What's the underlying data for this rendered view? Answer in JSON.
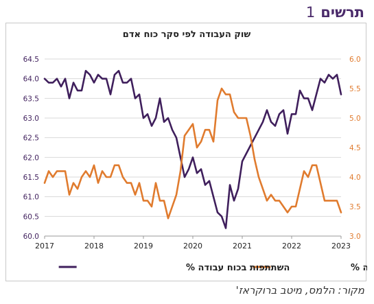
{
  "heading": {
    "word": "תרשים",
    "number": "1"
  },
  "source": "מקור: הלמס, מיטב ברוקראז'",
  "chart_data": {
    "type": "line",
    "title": "שוק העבודה לפי סקר כוח אדם",
    "x_ticks": [
      "2017",
      "2018",
      "2019",
      "2020",
      "2021",
      "2022",
      "2023"
    ],
    "xlim": [
      2017,
      2023
    ],
    "y_left": {
      "lim": [
        60.0,
        64.5
      ],
      "ticks": [
        "60.0",
        "60.5",
        "61.0",
        "61.5",
        "62.0",
        "62.5",
        "63.0",
        "63.5",
        "64.0",
        "64.5"
      ]
    },
    "y_right": {
      "lim": [
        3.0,
        6.0
      ],
      "ticks": [
        "3.0",
        "3.5",
        "4.0",
        "4.5",
        "5.0",
        "5.5",
        "6.0"
      ]
    },
    "grid": "horizontal",
    "legend_position": "bottom",
    "series": [
      {
        "name": "השתתפות בכוח עבודה %",
        "axis": "left",
        "color": "#3f1f5c",
        "x": [
          2017.0,
          2017.083,
          2017.167,
          2017.25,
          2017.333,
          2017.417,
          2017.5,
          2017.583,
          2017.667,
          2017.75,
          2017.833,
          2017.917,
          2018.0,
          2018.083,
          2018.167,
          2018.25,
          2018.333,
          2018.417,
          2018.5,
          2018.583,
          2018.667,
          2018.75,
          2018.833,
          2018.917,
          2019.0,
          2019.083,
          2019.167,
          2019.25,
          2019.333,
          2019.417,
          2019.5,
          2019.583,
          2019.667,
          2019.75,
          2019.833,
          2019.917,
          2020.0,
          2020.083,
          2020.167,
          2020.25,
          2020.333,
          2020.417,
          2020.5,
          2020.583,
          2020.667,
          2020.75,
          2020.833,
          2020.917,
          2021.0,
          2021.083,
          2021.167,
          2021.25,
          2021.333,
          2021.417,
          2021.5,
          2021.583,
          2021.667,
          2021.75,
          2021.833,
          2021.917,
          2022.0,
          2022.083,
          2022.167,
          2022.25,
          2022.333,
          2022.417,
          2022.5,
          2022.583,
          2022.667,
          2022.75,
          2022.833,
          2022.917,
          2023.0
        ],
        "values": [
          64.0,
          63.9,
          63.9,
          64.0,
          63.8,
          64.0,
          63.5,
          63.9,
          63.7,
          63.7,
          64.2,
          64.1,
          63.9,
          64.1,
          64.0,
          64.0,
          63.6,
          64.1,
          64.2,
          63.9,
          63.9,
          64.0,
          63.5,
          63.6,
          63.0,
          63.1,
          62.8,
          63.0,
          63.5,
          62.9,
          63.0,
          62.7,
          62.5,
          62.0,
          61.5,
          61.7,
          62.0,
          61.6,
          61.7,
          61.3,
          61.4,
          61.0,
          60.6,
          60.5,
          60.2,
          61.3,
          60.9,
          61.2,
          61.9,
          62.1,
          62.3,
          62.5,
          62.7,
          62.9,
          63.2,
          62.9,
          62.8,
          63.1,
          63.2,
          62.6,
          63.1,
          63.1,
          63.7,
          63.5,
          63.5,
          63.2,
          63.6,
          64.0,
          63.9,
          64.1,
          64.0,
          64.1,
          63.6
        ]
      },
      {
        "name": "שיעור האבטלה %",
        "axis": "right",
        "color": "#e07b2e",
        "x": [
          2017.0,
          2017.083,
          2017.167,
          2017.25,
          2017.333,
          2017.417,
          2017.5,
          2017.583,
          2017.667,
          2017.75,
          2017.833,
          2017.917,
          2018.0,
          2018.083,
          2018.167,
          2018.25,
          2018.333,
          2018.417,
          2018.5,
          2018.583,
          2018.667,
          2018.75,
          2018.833,
          2018.917,
          2019.0,
          2019.083,
          2019.167,
          2019.25,
          2019.333,
          2019.417,
          2019.5,
          2019.583,
          2019.667,
          2019.75,
          2019.833,
          2019.917,
          2020.0,
          2020.083,
          2020.167,
          2020.25,
          2020.333,
          2020.417,
          2020.5,
          2020.583,
          2020.667,
          2020.75,
          2020.833,
          2020.917,
          2021.0,
          2021.083,
          2021.167,
          2021.25,
          2021.333,
          2021.417,
          2021.5,
          2021.583,
          2021.667,
          2021.75,
          2021.833,
          2021.917,
          2022.0,
          2022.083,
          2022.167,
          2022.25,
          2022.333,
          2022.417,
          2022.5,
          2022.583,
          2022.667,
          2022.75,
          2022.833,
          2022.917,
          2023.0
        ],
        "values": [
          3.9,
          4.1,
          4.0,
          4.1,
          4.1,
          4.1,
          3.7,
          3.9,
          3.8,
          4.0,
          4.1,
          4.0,
          4.2,
          3.9,
          4.1,
          4.0,
          4.0,
          4.2,
          4.2,
          4.0,
          3.9,
          3.9,
          3.7,
          3.9,
          3.6,
          3.6,
          3.5,
          3.9,
          3.6,
          3.6,
          3.3,
          3.5,
          3.7,
          4.1,
          4.7,
          4.8,
          4.9,
          4.5,
          4.6,
          4.8,
          4.8,
          4.6,
          5.3,
          5.5,
          5.4,
          5.4,
          5.1,
          5.0,
          5.0,
          5.0,
          4.7,
          4.3,
          4.0,
          3.8,
          3.6,
          3.7,
          3.6,
          3.6,
          3.5,
          3.4,
          3.5,
          3.5,
          3.8,
          4.1,
          4.0,
          4.2,
          4.2,
          3.9,
          3.6,
          3.6,
          3.6,
          3.6,
          3.4
        ]
      }
    ]
  }
}
